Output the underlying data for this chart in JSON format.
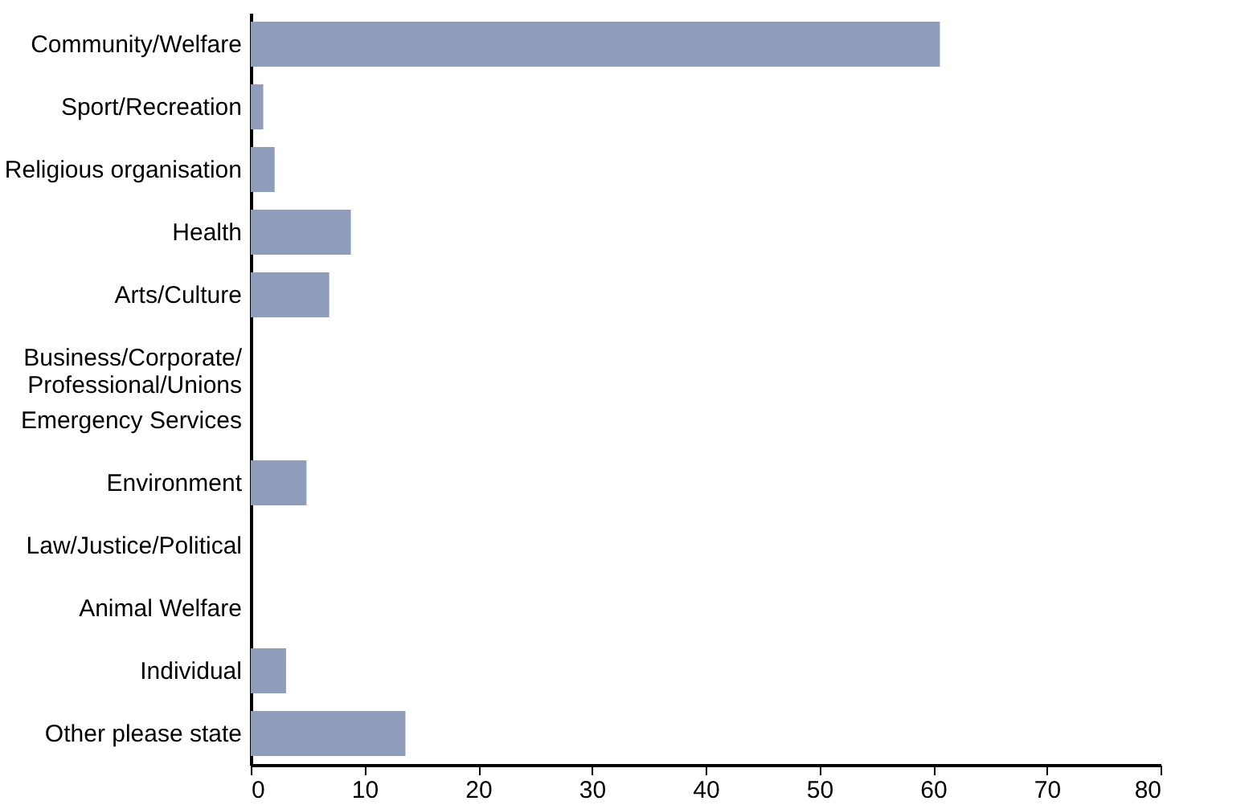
{
  "chart_data": {
    "type": "bar",
    "orientation": "horizontal",
    "categories": [
      "Community/Welfare",
      "Sport/Recreation",
      "Religious organisation",
      "Health",
      "Arts/Culture",
      "Business/Corporate/\nProfessional/Unions",
      "Emergency Services",
      "Environment",
      "Law/Justice/Political",
      "Animal Welfare",
      "Individual",
      "Other please state"
    ],
    "values": [
      60.6,
      1.1,
      2.1,
      8.8,
      6.9,
      0,
      0,
      4.9,
      0,
      0,
      3.1,
      13.6
    ],
    "color": "#8f9dbb",
    "xlim": [
      0,
      80
    ],
    "xticks": [
      0,
      10,
      20,
      30,
      40,
      50,
      60,
      70,
      80
    ],
    "grid": false
  }
}
